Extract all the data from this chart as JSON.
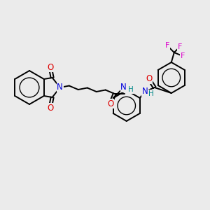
{
  "background_color": "#ebebeb",
  "bond_color": "#000000",
  "bond_lw": 1.4,
  "atom_colors": {
    "N": "#0000dd",
    "O": "#dd0000",
    "F": "#dd00cc",
    "H": "#008888"
  },
  "xlim": [
    0,
    300
  ],
  "ylim": [
    0,
    300
  ],
  "figsize": [
    3.0,
    3.0
  ],
  "dpi": 100
}
